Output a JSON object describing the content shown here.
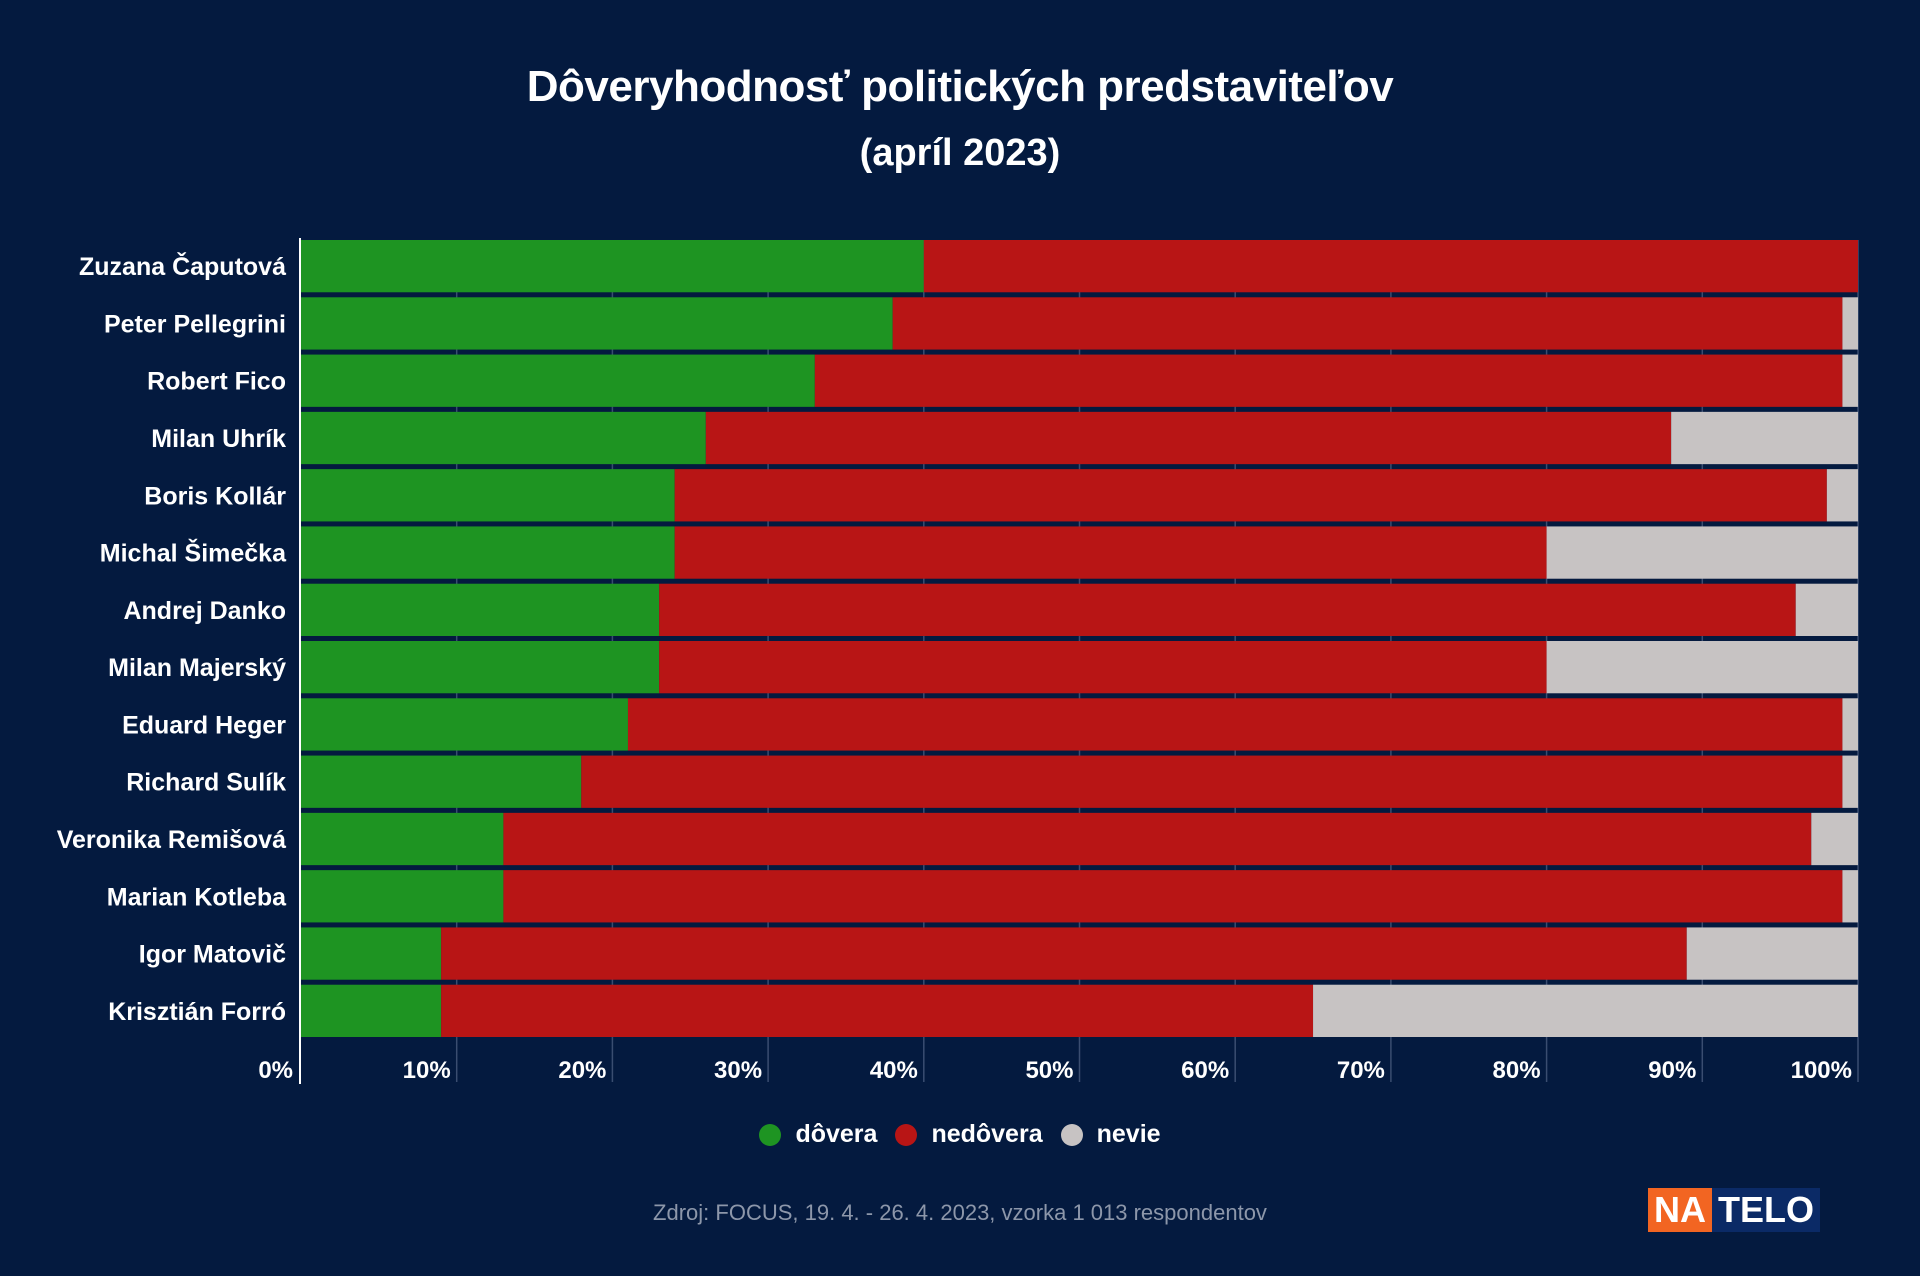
{
  "chart_data": {
    "type": "bar",
    "orientation": "horizontal",
    "stacked": true,
    "title": "Dôveryhodnosť politických predstaviteľov",
    "subtitle": "(apríl 2023)",
    "categories": [
      "Zuzana Čaputová",
      "Peter Pellegrini",
      "Robert Fico",
      "Milan Uhrík",
      "Boris Kollár",
      "Michal Šimečka",
      "Andrej Danko",
      "Milan Majerský",
      "Eduard Heger",
      "Richard Sulík",
      "Veronika Remišová",
      "Marian Kotleba",
      "Igor Matovič",
      "Krisztián Forró"
    ],
    "series": [
      {
        "name": "dôvera",
        "color": "#1e9422",
        "values": [
          40,
          38,
          33,
          26,
          24,
          24,
          23,
          23,
          21,
          18,
          13,
          13,
          9,
          9
        ]
      },
      {
        "name": "nedôvera",
        "color": "#b81515",
        "values": [
          60,
          61,
          66,
          62,
          74,
          56,
          73,
          57,
          78,
          81,
          84,
          86,
          80,
          56
        ]
      },
      {
        "name": "nevie",
        "color": "#c7c3c3",
        "values": [
          0,
          1,
          1,
          12,
          2,
          20,
          4,
          20,
          1,
          1,
          3,
          1,
          11,
          35
        ]
      }
    ],
    "xlim": [
      0,
      100
    ],
    "ticks": [
      "0%",
      "10%",
      "20%",
      "30%",
      "40%",
      "50%",
      "60%",
      "70%",
      "80%",
      "90%",
      "100%"
    ],
    "grid": true,
    "legend_position": "bottom"
  },
  "legend": [
    {
      "label": "dôvera",
      "color": "#1e9422"
    },
    {
      "label": "nedôvera",
      "color": "#b81515"
    },
    {
      "label": "nevie",
      "color": "#c7c3c3"
    }
  ],
  "source": "Zdroj: FOCUS, 19. 4. - 26. 4. 2023, vzorka 1 013 respondentov",
  "logo": {
    "part1": "NA",
    "part2": "TELO"
  }
}
